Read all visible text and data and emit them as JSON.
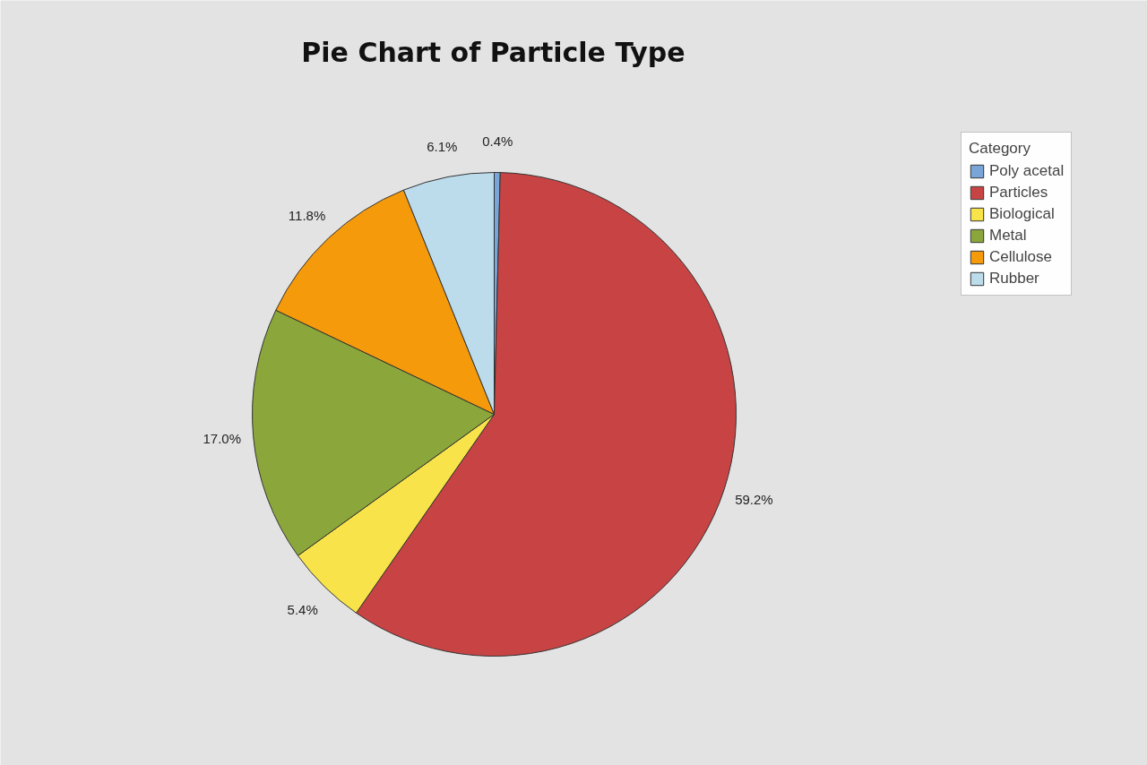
{
  "chart_data": {
    "type": "pie",
    "title": "Pie Chart of Particle Type",
    "legend_title": "Category",
    "categories": [
      "Poly acetal",
      "Particles",
      "Biological",
      "Metal",
      "Cellulose",
      "Rubber"
    ],
    "values": [
      0.4,
      59.2,
      5.4,
      17.0,
      11.8,
      6.1
    ],
    "value_labels": [
      "0.4%",
      "59.2%",
      "5.4%",
      "17.0%",
      "11.8%",
      "6.1%"
    ],
    "colors": [
      "#7aa5d8",
      "#c84444",
      "#f8e34a",
      "#8ba63a",
      "#f59a0a",
      "#bcdcec"
    ],
    "legend": "top right"
  }
}
